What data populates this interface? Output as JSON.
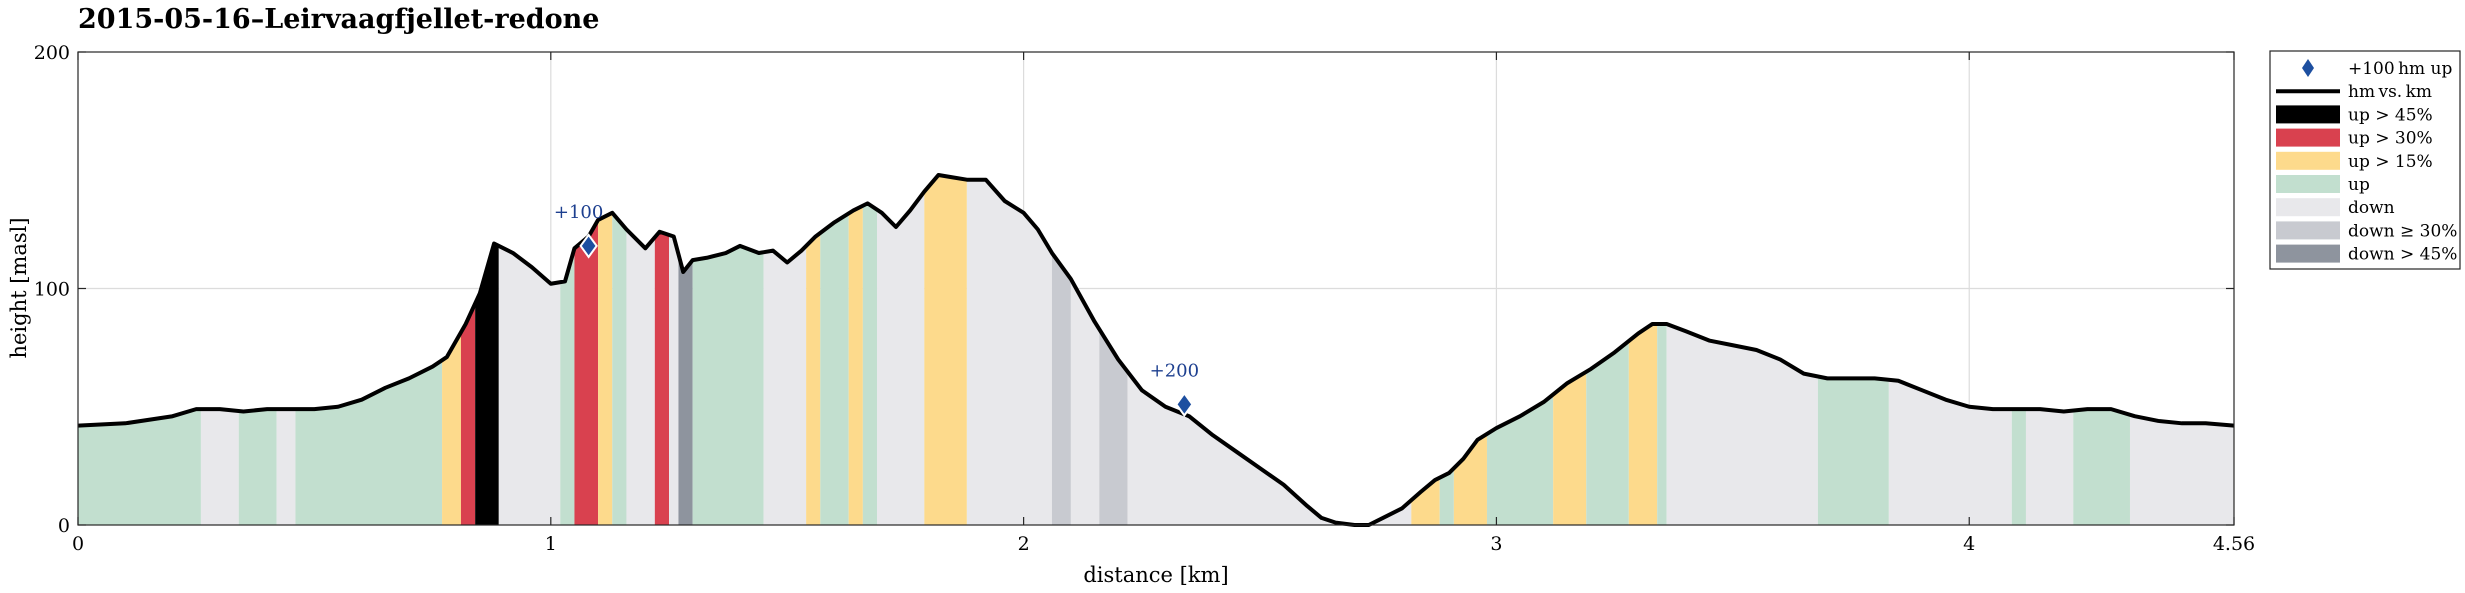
{
  "chart_data": {
    "type": "area",
    "title": "2015-05-16–Leirvaagfjellet-redone",
    "xlabel": "distance [km]",
    "ylabel": "height [masl]",
    "xlim": [
      0,
      4.56
    ],
    "ylim": [
      0,
      200
    ],
    "xticks": [
      0,
      1,
      2,
      3,
      4,
      4.56
    ],
    "xtick_labels": [
      "0",
      "1",
      "2",
      "3",
      "4",
      "4.56"
    ],
    "yticks": [
      0,
      100,
      200
    ],
    "ytick_labels": [
      "0",
      "100",
      "200"
    ],
    "grid": true,
    "legend_position": "outside-right-top",
    "profile": {
      "x": [
        0,
        0.1,
        0.2,
        0.25,
        0.3,
        0.35,
        0.4,
        0.45,
        0.5,
        0.55,
        0.6,
        0.65,
        0.7,
        0.75,
        0.78,
        0.82,
        0.85,
        0.88,
        0.92,
        0.96,
        1.0,
        1.03,
        1.05,
        1.08,
        1.1,
        1.13,
        1.16,
        1.2,
        1.23,
        1.26,
        1.28,
        1.3,
        1.33,
        1.37,
        1.4,
        1.44,
        1.47,
        1.5,
        1.53,
        1.56,
        1.6,
        1.64,
        1.67,
        1.7,
        1.73,
        1.76,
        1.79,
        1.82,
        1.85,
        1.88,
        1.92,
        1.96,
        2.0,
        2.03,
        2.06,
        2.1,
        2.15,
        2.2,
        2.25,
        2.3,
        2.35,
        2.4,
        2.45,
        2.5,
        2.55,
        2.6,
        2.63,
        2.66,
        2.7,
        2.73,
        2.76,
        2.8,
        2.84,
        2.87,
        2.9,
        2.93,
        2.96,
        3.0,
        3.05,
        3.1,
        3.15,
        3.2,
        3.25,
        3.3,
        3.33,
        3.36,
        3.4,
        3.45,
        3.5,
        3.55,
        3.6,
        3.65,
        3.7,
        3.75,
        3.8,
        3.85,
        3.9,
        3.95,
        4.0,
        4.05,
        4.1,
        4.15,
        4.2,
        4.25,
        4.3,
        4.35,
        4.4,
        4.45,
        4.5,
        4.56
      ],
      "y": [
        42,
        43,
        46,
        49,
        49,
        48,
        49,
        49,
        49,
        50,
        53,
        58,
        62,
        67,
        71,
        85,
        98,
        119,
        115,
        109,
        102,
        103,
        117,
        122,
        129,
        132,
        125,
        117,
        124,
        122,
        107,
        112,
        113,
        115,
        118,
        115,
        116,
        111,
        116,
        122,
        128,
        133,
        136,
        132,
        126,
        133,
        141,
        148,
        147,
        146,
        146,
        137,
        132,
        125,
        115,
        104,
        86,
        70,
        57,
        50,
        46,
        38,
        31,
        24,
        17,
        8,
        3,
        1,
        0,
        0,
        3,
        7,
        14,
        19,
        22,
        28,
        36,
        41,
        46,
        52,
        60,
        66,
        73,
        81,
        85,
        85,
        82,
        78,
        76,
        74,
        70,
        64,
        62,
        62,
        62,
        61,
        57,
        53,
        50,
        49,
        49,
        49,
        48,
        49,
        49,
        46,
        44,
        43,
        43,
        42
      ]
    },
    "segments": [
      {
        "x0": 0.0,
        "x1": 0.26,
        "cat": "up"
      },
      {
        "x0": 0.26,
        "x1": 0.34,
        "cat": "down"
      },
      {
        "x0": 0.34,
        "x1": 0.42,
        "cat": "up"
      },
      {
        "x0": 0.42,
        "x1": 0.46,
        "cat": "down"
      },
      {
        "x0": 0.46,
        "x1": 0.77,
        "cat": "up"
      },
      {
        "x0": 0.77,
        "x1": 0.81,
        "cat": "up15"
      },
      {
        "x0": 0.81,
        "x1": 0.84,
        "cat": "up30"
      },
      {
        "x0": 0.84,
        "x1": 0.89,
        "cat": "up45"
      },
      {
        "x0": 0.89,
        "x1": 1.02,
        "cat": "down"
      },
      {
        "x0": 1.02,
        "x1": 1.05,
        "cat": "up"
      },
      {
        "x0": 1.05,
        "x1": 1.1,
        "cat": "up30"
      },
      {
        "x0": 1.1,
        "x1": 1.13,
        "cat": "up15"
      },
      {
        "x0": 1.13,
        "x1": 1.16,
        "cat": "up"
      },
      {
        "x0": 1.16,
        "x1": 1.22,
        "cat": "down"
      },
      {
        "x0": 1.22,
        "x1": 1.25,
        "cat": "up30"
      },
      {
        "x0": 1.25,
        "x1": 1.27,
        "cat": "down"
      },
      {
        "x0": 1.27,
        "x1": 1.3,
        "cat": "down45"
      },
      {
        "x0": 1.3,
        "x1": 1.45,
        "cat": "up"
      },
      {
        "x0": 1.45,
        "x1": 1.54,
        "cat": "down"
      },
      {
        "x0": 1.54,
        "x1": 1.57,
        "cat": "up15"
      },
      {
        "x0": 1.57,
        "x1": 1.63,
        "cat": "up"
      },
      {
        "x0": 1.63,
        "x1": 1.66,
        "cat": "up15"
      },
      {
        "x0": 1.66,
        "x1": 1.69,
        "cat": "up"
      },
      {
        "x0": 1.69,
        "x1": 1.79,
        "cat": "down"
      },
      {
        "x0": 1.79,
        "x1": 1.88,
        "cat": "up15"
      },
      {
        "x0": 1.88,
        "x1": 2.06,
        "cat": "down"
      },
      {
        "x0": 2.06,
        "x1": 2.1,
        "cat": "down30"
      },
      {
        "x0": 2.1,
        "x1": 2.16,
        "cat": "down"
      },
      {
        "x0": 2.16,
        "x1": 2.22,
        "cat": "down30"
      },
      {
        "x0": 2.22,
        "x1": 2.82,
        "cat": "down"
      },
      {
        "x0": 2.82,
        "x1": 2.88,
        "cat": "up15"
      },
      {
        "x0": 2.88,
        "x1": 2.91,
        "cat": "up"
      },
      {
        "x0": 2.91,
        "x1": 2.98,
        "cat": "up15"
      },
      {
        "x0": 2.98,
        "x1": 3.12,
        "cat": "up"
      },
      {
        "x0": 3.12,
        "x1": 3.19,
        "cat": "up15"
      },
      {
        "x0": 3.19,
        "x1": 3.28,
        "cat": "up"
      },
      {
        "x0": 3.28,
        "x1": 3.34,
        "cat": "up15"
      },
      {
        "x0": 3.34,
        "x1": 3.36,
        "cat": "up"
      },
      {
        "x0": 3.36,
        "x1": 3.68,
        "cat": "down"
      },
      {
        "x0": 3.68,
        "x1": 3.83,
        "cat": "up"
      },
      {
        "x0": 3.83,
        "x1": 4.09,
        "cat": "down"
      },
      {
        "x0": 4.09,
        "x1": 4.12,
        "cat": "up"
      },
      {
        "x0": 4.12,
        "x1": 4.22,
        "cat": "down"
      },
      {
        "x0": 4.22,
        "x1": 4.34,
        "cat": "up"
      },
      {
        "x0": 4.34,
        "x1": 4.56,
        "cat": "down"
      }
    ],
    "markers": [
      {
        "x": 1.08,
        "y": 118,
        "label": "+100"
      },
      {
        "x": 2.34,
        "y": 51,
        "label": "+200"
      }
    ],
    "colors": {
      "up": "#c2dfcf",
      "up15": "#fdda8c",
      "up30": "#d9414f",
      "up45": "#000000",
      "down": "#e8e8eb",
      "down30": "#c8cad0",
      "down45": "#8e949e",
      "line": "#000000",
      "marker": "#1d4fa0",
      "marker_text": "#1d3f8f",
      "grid": "#dcdcdc"
    },
    "legend": [
      {
        "key": "marker",
        "label": "+100 hm up"
      },
      {
        "key": "line",
        "label": "hm vs. km"
      },
      {
        "key": "up45",
        "label": "up > 45%"
      },
      {
        "key": "up30",
        "label": "up > 30%"
      },
      {
        "key": "up15",
        "label": "up > 15%"
      },
      {
        "key": "up",
        "label": "up"
      },
      {
        "key": "down",
        "label": "down"
      },
      {
        "key": "down30",
        "label": "down ≥ 30%"
      },
      {
        "key": "down45",
        "label": "down > 45%"
      }
    ]
  }
}
